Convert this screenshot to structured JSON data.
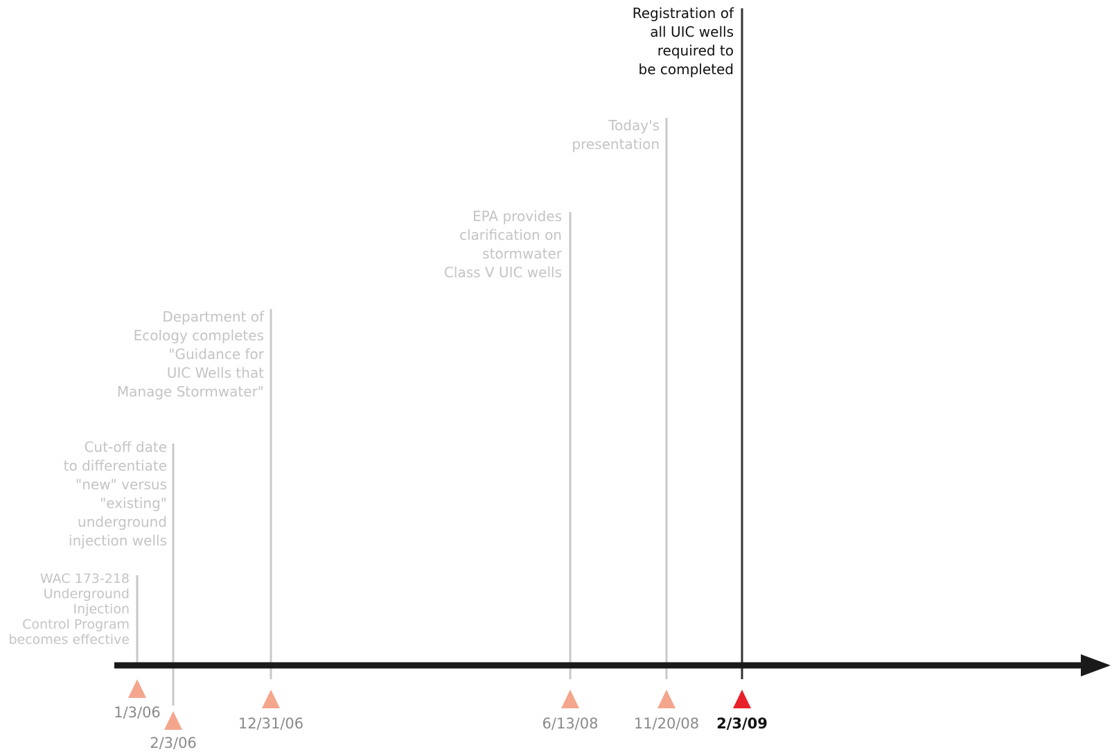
{
  "timeline": {
    "events": [
      {
        "id": "wac",
        "date": "1/3/06",
        "description_lines": [
          "WAC 173-218",
          "Underground",
          "Injection",
          "Control Program",
          "becomes effective"
        ],
        "highlight": false
      },
      {
        "id": "cutoff",
        "date": "2/3/06",
        "description_lines": [
          "Cut-off date",
          "to differentiate",
          "\"new\" versus",
          "\"existing\"",
          "underground",
          "injection wells"
        ],
        "highlight": false
      },
      {
        "id": "guidance",
        "date": "12/31/06",
        "description_lines": [
          "Department of",
          "Ecology completes",
          "\"Guidance for",
          "UIC Wells that",
          "Manage Stormwater\""
        ],
        "highlight": false
      },
      {
        "id": "epa",
        "date": "6/13/08",
        "description_lines": [
          "EPA provides",
          "clarification on",
          "stormwater",
          "Class V UIC wells"
        ],
        "highlight": false
      },
      {
        "id": "presentation",
        "date": "11/20/08",
        "description_lines": [
          "Today's",
          "presentation"
        ],
        "highlight": false
      },
      {
        "id": "registration",
        "date": "2/3/09",
        "description_lines": [
          "Registration of",
          "all UIC wells",
          "required to",
          "be completed"
        ],
        "highlight": true
      }
    ],
    "colors": {
      "axis": "#1a1a1a",
      "marker": "#f4a68c",
      "marker_highlight": "#e8202a",
      "stem": "#c8c8c8",
      "stem_highlight": "#333333"
    }
  }
}
